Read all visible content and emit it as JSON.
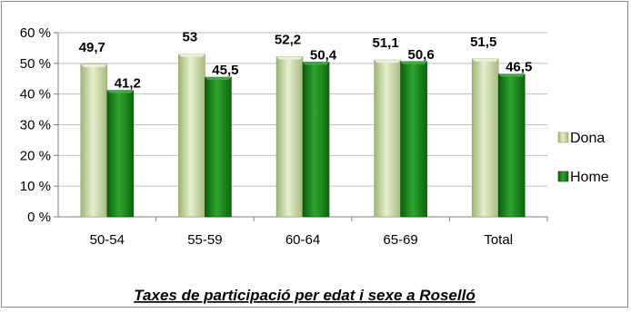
{
  "chart_data": {
    "type": "bar",
    "title": "Taxes de participació per edat i sexe a Roselló",
    "categories": [
      "50-54",
      "55-59",
      "60-64",
      "65-69",
      "Total"
    ],
    "series": [
      {
        "name": "Dona",
        "values": [
          49.7,
          53,
          52.2,
          51.1,
          51.5
        ],
        "labels": [
          "49,7",
          "53",
          "52,2",
          "51,1",
          "51,5"
        ]
      },
      {
        "name": "Home",
        "values": [
          41.2,
          45.5,
          50.4,
          50.6,
          46.5
        ],
        "labels": [
          "41,2",
          "45,5",
          "50,4",
          "50,6",
          "46,5"
        ]
      }
    ],
    "yticks": [
      "0 %",
      "10 %",
      "20 %",
      "30 %",
      "40 %",
      "50 %",
      "60 %"
    ],
    "ylim": [
      0,
      60
    ],
    "grid": true,
    "legend_position": "right",
    "colors": {
      "Dona": "#c9d9a3",
      "Home": "#1a8a1a"
    }
  }
}
